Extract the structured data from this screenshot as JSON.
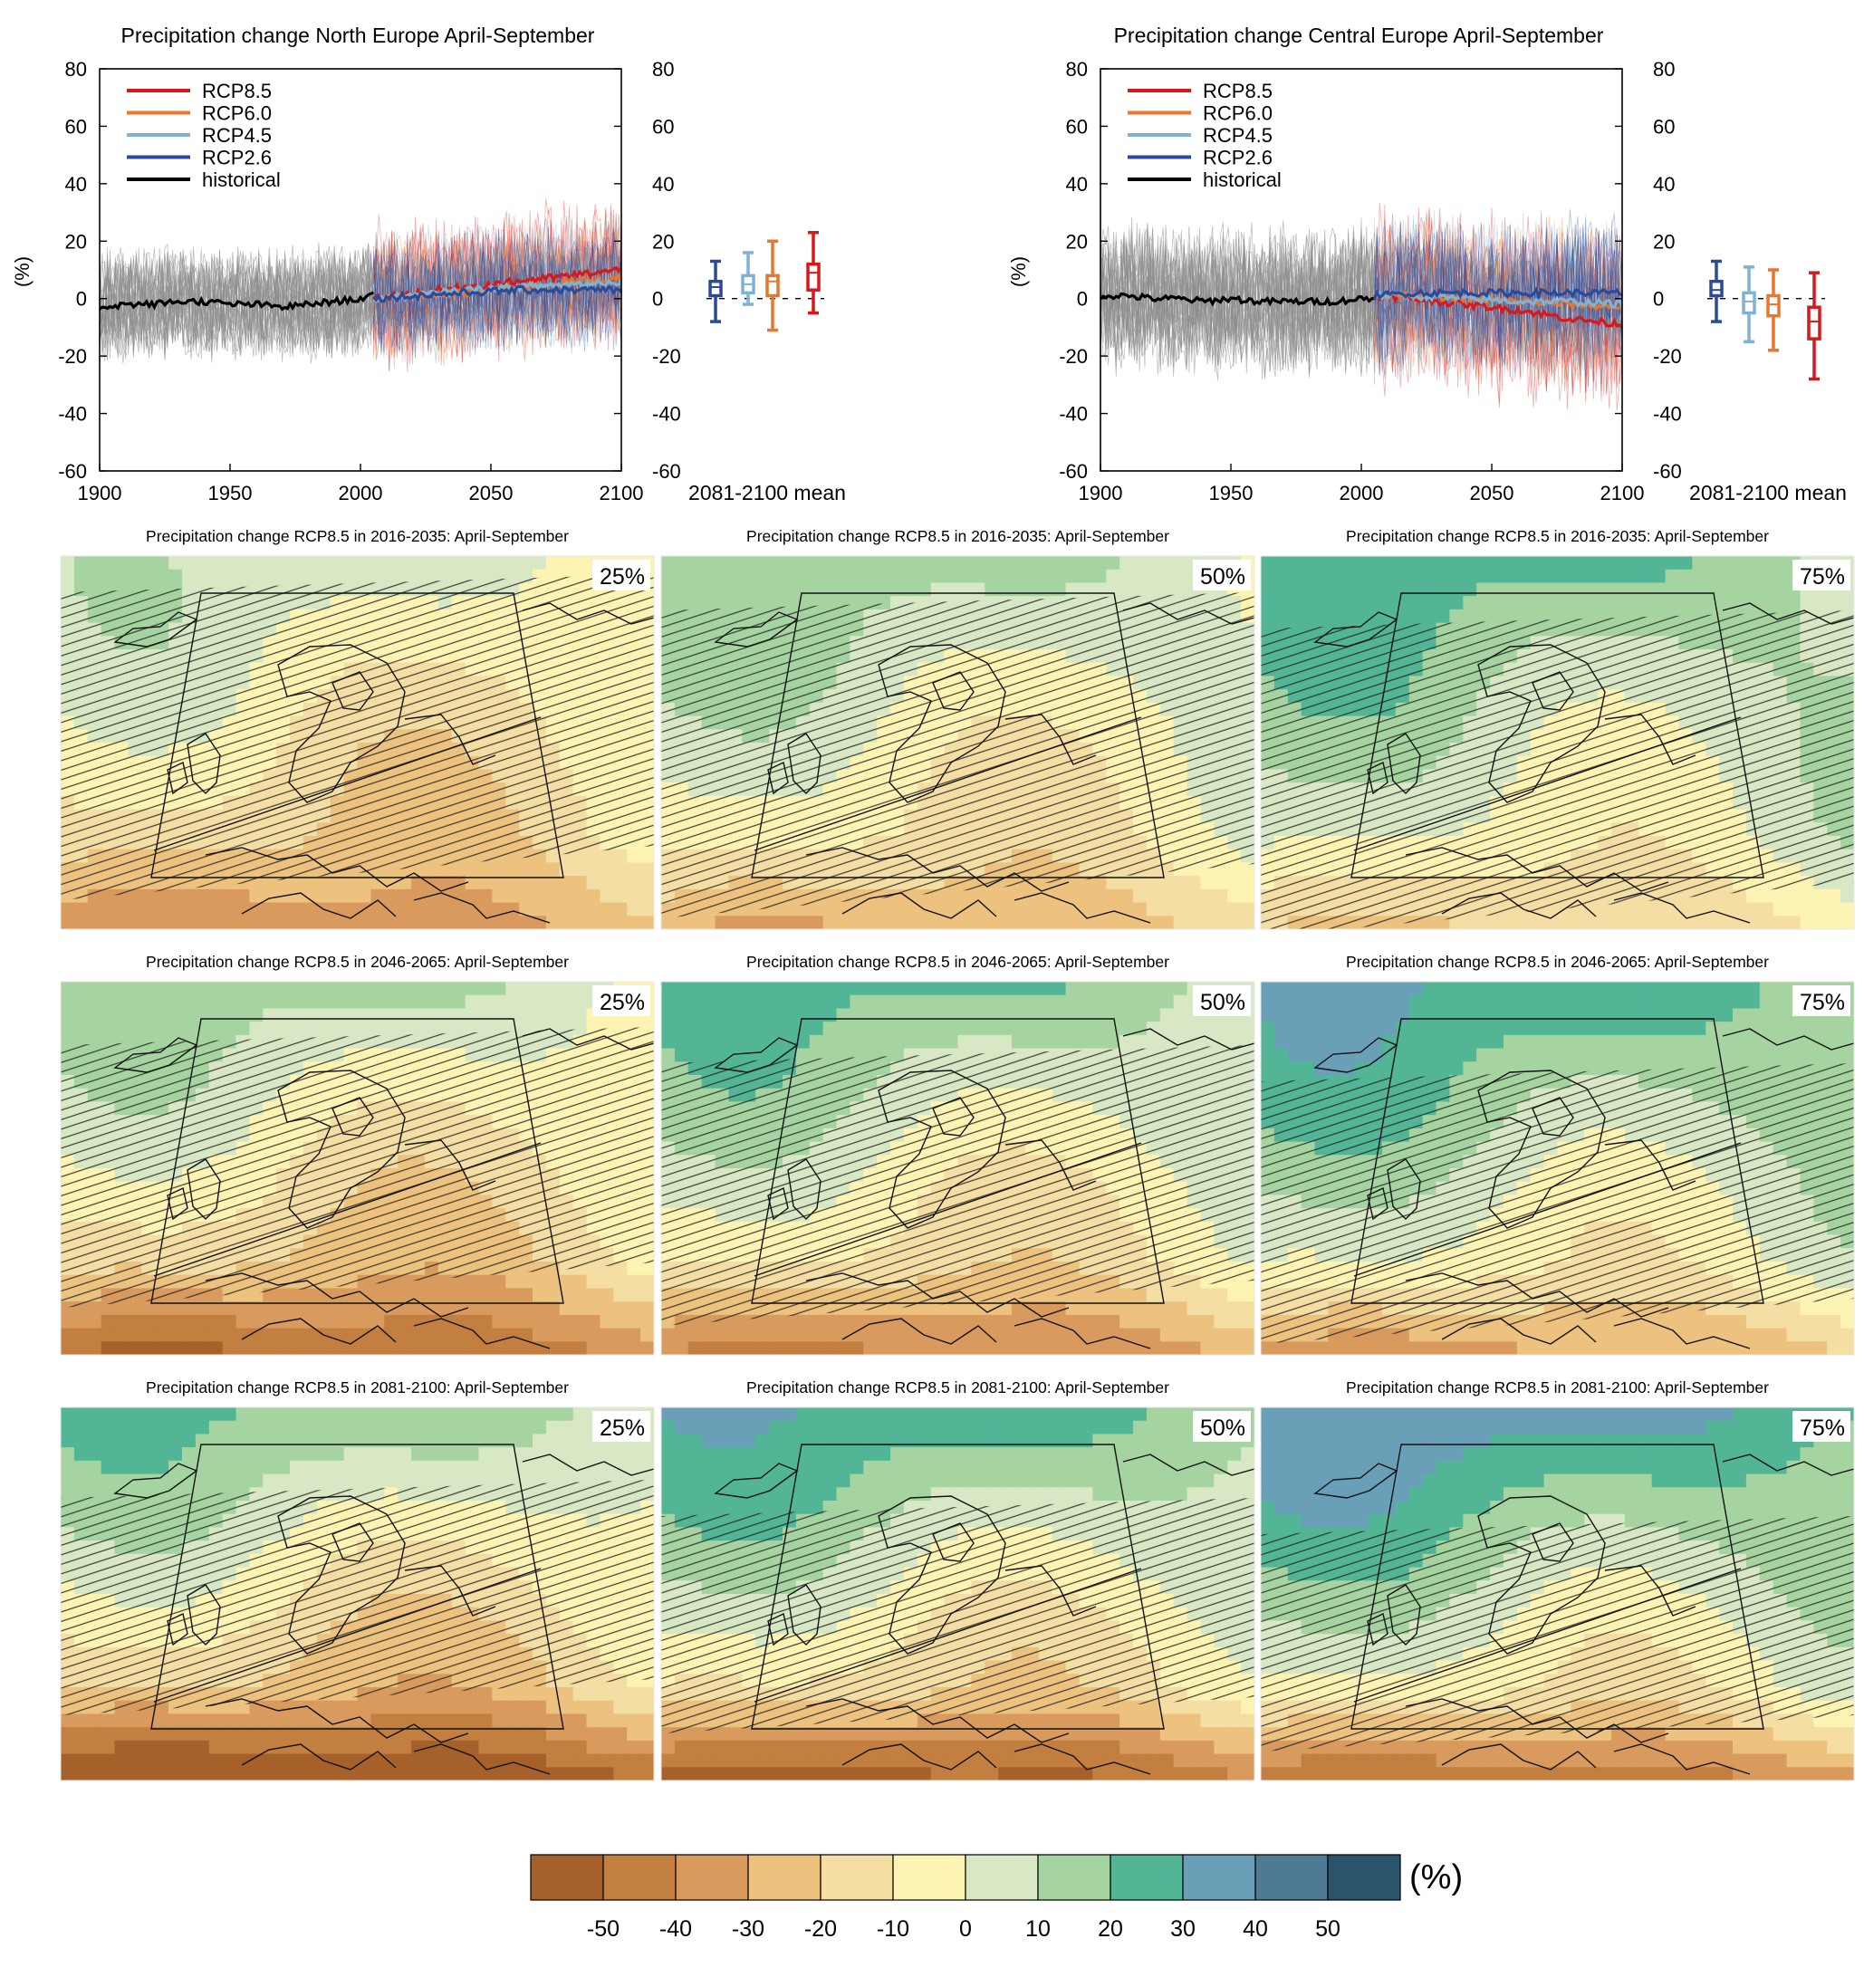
{
  "colors": {
    "rcp85": "#d7191c",
    "rcp60": "#e8762c",
    "rcp45": "#7fb3d5",
    "rcp26": "#2c4a9a",
    "historical": "#000000",
    "hist_spread": "#8c8c8c",
    "colorbar": [
      "#a6612a",
      "#c27f3f",
      "#d99a5e",
      "#ecc27e",
      "#f4dea3",
      "#fdf4b3",
      "#d8e8c4",
      "#a6d4a0",
      "#52b596",
      "#6a9fb8",
      "#4e7a94",
      "#2c536c"
    ]
  },
  "chart_data": [
    {
      "id": "north",
      "type": "line",
      "title": "Precipitation change North Europe April-September",
      "ylabel": "(%)",
      "xlabel": "",
      "xlim": [
        1900,
        2100
      ],
      "ylim": [
        -60,
        80
      ],
      "xticks": [
        "1900",
        "1950",
        "2000",
        "2050",
        "2100"
      ],
      "yticks": [
        "-60",
        "-40",
        "-20",
        "0",
        "20",
        "40",
        "60",
        "80"
      ],
      "grid": false,
      "legend_position": "top-left",
      "legend": [
        "RCP8.5",
        "RCP6.0",
        "RCP4.5",
        "RCP2.6",
        "historical"
      ],
      "historical": {
        "x": [
          1900,
          1910,
          1920,
          1930,
          1940,
          1950,
          1960,
          1970,
          1980,
          1990,
          2000,
          2005
        ],
        "y": [
          -3,
          -2,
          -2,
          -1,
          -1,
          -2,
          -2,
          -3,
          -2,
          -1,
          0,
          1
        ],
        "spread": 20
      },
      "series": [
        {
          "name": "RCP2.6",
          "x": [
            2005,
            2020,
            2040,
            2060,
            2080,
            2100
          ],
          "y": [
            0,
            1,
            2,
            3,
            3,
            3
          ],
          "spread": 22
        },
        {
          "name": "RCP4.5",
          "x": [
            2005,
            2020,
            2040,
            2060,
            2080,
            2100
          ],
          "y": [
            0,
            1,
            3,
            4,
            5,
            6
          ],
          "spread": 24
        },
        {
          "name": "RCP6.0",
          "x": [
            2005,
            2020,
            2040,
            2060,
            2080,
            2100
          ],
          "y": [
            0,
            1,
            2,
            4,
            6,
            7
          ],
          "spread": 24
        },
        {
          "name": "RCP8.5",
          "x": [
            2005,
            2020,
            2040,
            2060,
            2080,
            2100
          ],
          "y": [
            0,
            2,
            4,
            6,
            8,
            10
          ],
          "spread": 28
        }
      ],
      "boxes_label": "2081-2100 mean",
      "boxes": [
        {
          "name": "RCP2.6",
          "min": -8,
          "q1": 1,
          "median": 4,
          "q3": 6,
          "max": 13
        },
        {
          "name": "RCP4.5",
          "min": -2,
          "q1": 2,
          "median": 5,
          "q3": 8,
          "max": 16
        },
        {
          "name": "RCP6.0",
          "min": -11,
          "q1": 1,
          "median": 6,
          "q3": 8,
          "max": 20
        },
        {
          "name": "RCP8.5",
          "min": -5,
          "q1": 3,
          "median": 9,
          "q3": 12,
          "max": 23
        }
      ]
    },
    {
      "id": "central",
      "type": "line",
      "title": "Precipitation change Central Europe April-September",
      "ylabel": "(%)",
      "xlabel": "",
      "xlim": [
        1900,
        2100
      ],
      "ylim": [
        -60,
        80
      ],
      "xticks": [
        "1900",
        "1950",
        "2000",
        "2050",
        "2100"
      ],
      "yticks": [
        "-60",
        "-40",
        "-20",
        "0",
        "20",
        "40",
        "60",
        "80"
      ],
      "grid": false,
      "legend_position": "top-left",
      "legend": [
        "RCP8.5",
        "RCP6.0",
        "RCP4.5",
        "RCP2.6",
        "historical"
      ],
      "historical": {
        "x": [
          1900,
          1910,
          1920,
          1930,
          1940,
          1950,
          1960,
          1970,
          1980,
          1990,
          2000,
          2005
        ],
        "y": [
          1,
          1,
          0,
          0,
          -1,
          0,
          -1,
          -1,
          -1,
          -1,
          0,
          0
        ],
        "spread": 26
      },
      "series": [
        {
          "name": "RCP2.6",
          "x": [
            2005,
            2020,
            2040,
            2060,
            2080,
            2100
          ],
          "y": [
            1,
            2,
            2,
            2,
            2,
            2
          ],
          "spread": 28
        },
        {
          "name": "RCP4.5",
          "x": [
            2005,
            2020,
            2040,
            2060,
            2080,
            2100
          ],
          "y": [
            1,
            1,
            0,
            -1,
            -1,
            -2
          ],
          "spread": 30
        },
        {
          "name": "RCP6.0",
          "x": [
            2005,
            2020,
            2040,
            2060,
            2080,
            2100
          ],
          "y": [
            1,
            1,
            0,
            -1,
            -2,
            -3
          ],
          "spread": 30
        },
        {
          "name": "RCP8.5",
          "x": [
            2005,
            2020,
            2040,
            2060,
            2080,
            2100
          ],
          "y": [
            1,
            0,
            -2,
            -4,
            -7,
            -9
          ],
          "spread": 34
        }
      ],
      "boxes_label": "2081-2100 mean",
      "boxes": [
        {
          "name": "RCP2.6",
          "min": -8,
          "q1": 1,
          "median": 3,
          "q3": 6,
          "max": 13
        },
        {
          "name": "RCP4.5",
          "min": -15,
          "q1": -5,
          "median": -1,
          "q3": 2,
          "max": 11
        },
        {
          "name": "RCP6.0",
          "min": -18,
          "q1": -6,
          "median": -2,
          "q3": 1,
          "max": 10
        },
        {
          "name": "RCP8.5",
          "min": -28,
          "q1": -14,
          "median": -8,
          "q3": -3,
          "max": 9
        }
      ]
    }
  ],
  "maps": {
    "rows": [
      {
        "title": "Precipitation change RCP8.5 in 2016-2035: April-September",
        "percentiles": [
          "25%",
          "50%",
          "75%"
        ],
        "level": 0
      },
      {
        "title": "Precipitation change RCP8.5 in 2046-2065: April-September",
        "percentiles": [
          "25%",
          "50%",
          "75%"
        ],
        "level": 1
      },
      {
        "title": "Precipitation change RCP8.5 in 2081-2100: April-September",
        "percentiles": [
          "25%",
          "50%",
          "75%"
        ],
        "level": 2
      }
    ]
  },
  "colorbar": {
    "ticks": [
      "-50",
      "-40",
      "-30",
      "-20",
      "-10",
      "0",
      "10",
      "20",
      "30",
      "40",
      "50"
    ],
    "unit": "(%)"
  }
}
